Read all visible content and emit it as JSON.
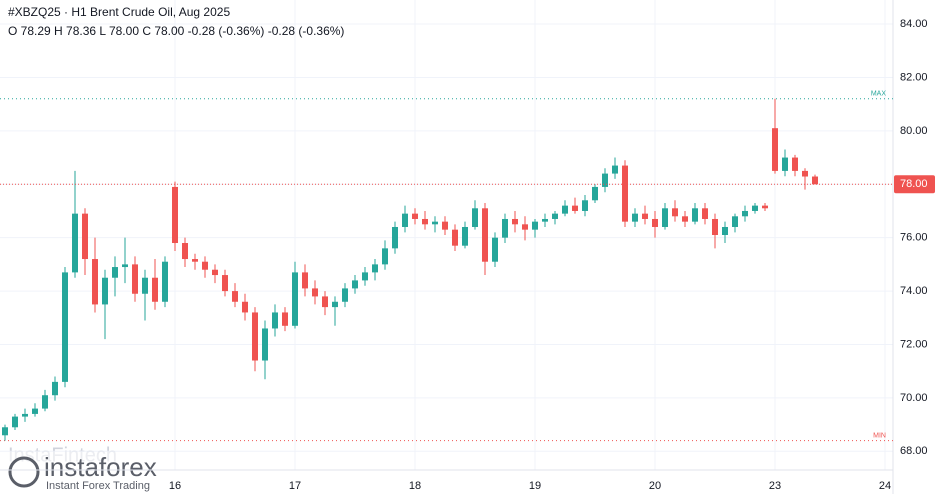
{
  "chart_data": {
    "type": "candlestick",
    "title": "#XBZQ25 · H1 Brent Crude Oil, Aug 2025",
    "subtitle": "O 78.29 H 78.36 L 78.00 C 78.00 -0.28 (-0.36%) -0.28 (-0.36%)",
    "watermark": {
      "brand": "instaforex",
      "tagline": "Instant Forex Trading",
      "faint": "InstaFintech"
    },
    "up_color": "#26a69a",
    "down_color": "#ef5350",
    "grid": true,
    "categories": [
      null,
      null,
      null,
      null,
      null,
      null,
      null,
      null,
      null,
      null,
      null,
      null,
      null,
      null,
      null,
      null,
      null,
      "16",
      null,
      null,
      null,
      null,
      null,
      null,
      null,
      null,
      null,
      null,
      null,
      "17",
      null,
      null,
      null,
      null,
      null,
      null,
      null,
      null,
      null,
      null,
      null,
      "18",
      null,
      null,
      null,
      null,
      null,
      null,
      null,
      null,
      null,
      null,
      null,
      "19",
      null,
      null,
      null,
      null,
      null,
      null,
      null,
      null,
      null,
      null,
      null,
      "20",
      null,
      null,
      null,
      null,
      null,
      null,
      null,
      null,
      null,
      null,
      null,
      "23",
      null,
      null,
      null,
      null,
      null,
      null,
      null,
      null,
      null,
      null,
      "24"
    ],
    "open": [
      68.6,
      68.9,
      69.3,
      69.4,
      69.6,
      70.1,
      70.6,
      74.7,
      76.9,
      75.2,
      73.5,
      74.5,
      74.9,
      75.0,
      73.9,
      74.5,
      73.6,
      77.9,
      75.8,
      75.2,
      75.1,
      74.8,
      74.6,
      74.0,
      73.6,
      73.2,
      71.4,
      72.6,
      73.2,
      72.7,
      74.7,
      74.1,
      73.8,
      73.4,
      73.6,
      74.1,
      74.4,
      74.7,
      75.0,
      75.6,
      76.4,
      76.9,
      76.7,
      76.5,
      76.6,
      76.3,
      75.7,
      76.4,
      77.1,
      75.1,
      76.0,
      76.7,
      76.5,
      76.3,
      76.6,
      76.7,
      76.9,
      77.2,
      77.0,
      77.4,
      77.9,
      78.4,
      78.7,
      76.6,
      76.9,
      76.7,
      76.4,
      77.1,
      76.8,
      76.6,
      77.1,
      76.7,
      76.1,
      76.4,
      76.8,
      77.0,
      77.2,
      80.1,
      78.5,
      79.0,
      78.5,
      78.29,
      null,
      null,
      null,
      null,
      null,
      null,
      null
    ],
    "high": [
      69.0,
      69.4,
      69.6,
      69.8,
      70.3,
      70.8,
      74.9,
      78.5,
      77.1,
      76.0,
      74.8,
      75.3,
      76.0,
      75.3,
      74.8,
      75.2,
      75.3,
      78.1,
      76.0,
      75.4,
      75.3,
      75.0,
      74.8,
      74.3,
      73.9,
      73.4,
      72.9,
      73.5,
      73.4,
      75.1,
      75.0,
      74.4,
      74.0,
      73.8,
      74.3,
      74.6,
      74.9,
      75.2,
      75.9,
      76.6,
      77.2,
      77.1,
      77.0,
      76.8,
      76.8,
      76.5,
      76.6,
      77.4,
      77.3,
      76.2,
      76.9,
      77.0,
      76.8,
      76.7,
      76.9,
      77.0,
      77.4,
      77.5,
      77.6,
      78.0,
      78.6,
      79.0,
      78.9,
      77.1,
      77.2,
      77.0,
      77.3,
      77.4,
      77.0,
      77.3,
      77.3,
      76.9,
      76.6,
      76.9,
      77.2,
      77.3,
      77.3,
      81.2,
      79.3,
      79.1,
      78.6,
      78.36,
      null,
      null,
      null,
      null,
      null,
      null,
      null
    ],
    "low": [
      68.4,
      68.8,
      69.1,
      69.3,
      69.5,
      69.9,
      70.4,
      74.5,
      74.6,
      73.2,
      72.2,
      73.8,
      74.3,
      73.6,
      72.9,
      73.3,
      73.4,
      75.5,
      74.9,
      74.8,
      74.5,
      74.3,
      73.8,
      73.4,
      72.9,
      71.0,
      70.7,
      72.3,
      72.5,
      72.6,
      73.8,
      73.5,
      73.1,
      72.7,
      73.4,
      73.9,
      74.2,
      74.4,
      74.8,
      75.4,
      76.2,
      76.5,
      76.3,
      76.2,
      76.1,
      75.5,
      75.6,
      76.3,
      74.6,
      74.9,
      75.8,
      76.2,
      75.9,
      76.0,
      76.4,
      76.5,
      76.8,
      76.9,
      76.8,
      77.3,
      77.7,
      78.2,
      76.4,
      76.4,
      76.5,
      76.0,
      76.3,
      76.6,
      76.4,
      76.5,
      76.5,
      75.6,
      75.8,
      76.2,
      76.6,
      76.9,
      77.0,
      78.4,
      78.3,
      78.3,
      77.8,
      78.0,
      null,
      null,
      null,
      null,
      null,
      null,
      null
    ],
    "close": [
      68.9,
      69.3,
      69.4,
      69.6,
      70.1,
      70.6,
      74.7,
      76.9,
      75.2,
      73.5,
      74.5,
      74.9,
      75.0,
      73.9,
      74.5,
      73.6,
      75.1,
      75.8,
      75.2,
      75.1,
      74.8,
      74.6,
      74.0,
      73.6,
      73.2,
      71.4,
      72.6,
      73.2,
      72.7,
      74.7,
      74.1,
      73.8,
      73.4,
      73.6,
      74.1,
      74.4,
      74.7,
      75.0,
      75.6,
      76.4,
      76.9,
      76.7,
      76.5,
      76.6,
      76.3,
      75.7,
      76.4,
      77.1,
      75.1,
      76.0,
      76.7,
      76.5,
      76.3,
      76.6,
      76.7,
      76.9,
      77.2,
      77.0,
      77.4,
      77.9,
      78.4,
      78.7,
      76.6,
      76.9,
      76.7,
      76.4,
      77.1,
      76.8,
      76.6,
      77.1,
      76.7,
      76.1,
      76.4,
      76.8,
      77.0,
      77.2,
      77.1,
      78.5,
      79.0,
      78.5,
      78.29,
      78.0,
      null,
      null,
      null,
      null,
      null,
      null,
      null
    ],
    "ylim": [
      67.3,
      84.9
    ],
    "yticks": [
      {
        "value": 68,
        "label": "68.00"
      },
      {
        "value": 70,
        "label": "70.00"
      },
      {
        "value": 72,
        "label": "72.00"
      },
      {
        "value": 74,
        "label": "74.00"
      },
      {
        "value": 76,
        "label": "76.00"
      },
      {
        "value": 78,
        "label": "78.00"
      },
      {
        "value": 80,
        "label": "80.00"
      },
      {
        "value": 82,
        "label": "82.00"
      },
      {
        "value": 84,
        "label": "84.00"
      }
    ],
    "max_line": {
      "value": 81.2,
      "label": "MAX",
      "color": "#26a69a"
    },
    "min_line": {
      "value": 68.4,
      "label": "MIN",
      "color": "#ef5350"
    },
    "last_price": {
      "value": 78,
      "label": "78.00",
      "color": "#ef5350"
    }
  }
}
